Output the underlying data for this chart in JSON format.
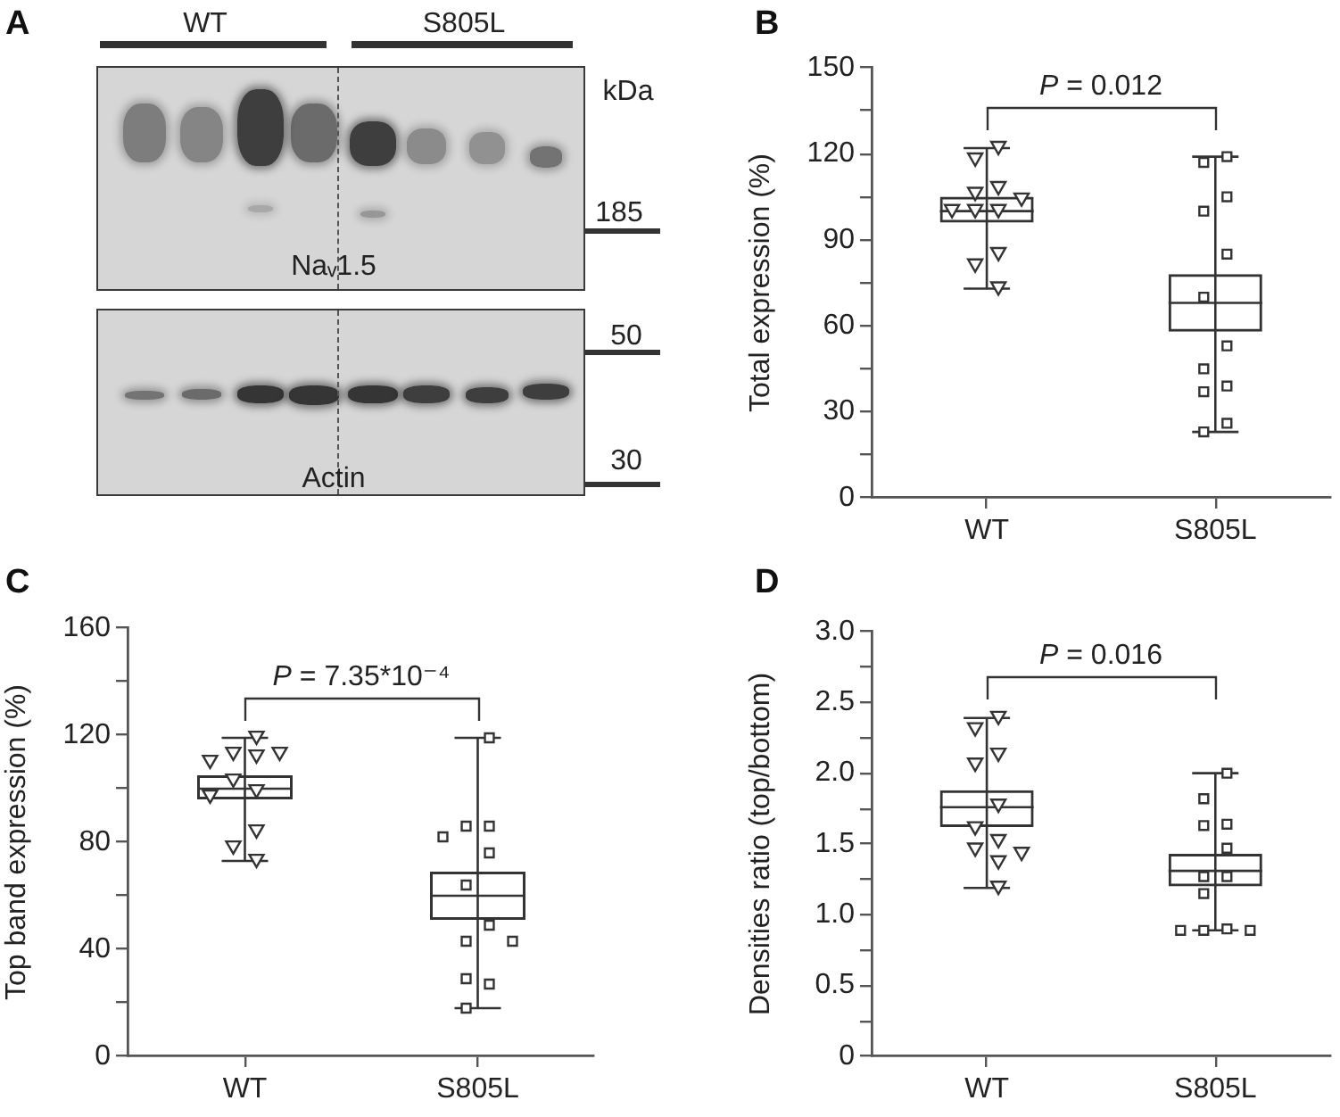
{
  "chart_data": [
    {
      "type": "other",
      "title": "A",
      "annotations": [
        "WT",
        "S805L",
        "kDa",
        "185",
        "50",
        "30",
        "Naᵥ1.5",
        "Actin"
      ]
    },
    {
      "type": "box",
      "title": "B",
      "ylabel": "Total expression (%)",
      "categories": [
        "WT",
        "S805L"
      ],
      "color": "#333333",
      "boxes": [
        {
          "low": 73,
          "q1": 96,
          "median": 100,
          "q3": 105,
          "high": 122
        },
        {
          "low": 23,
          "q1": 58,
          "median": 68,
          "q3": 78,
          "high": 119
        }
      ],
      "series": [
        {
          "type": "scatter",
          "color": "#333333",
          "marker": "triangle",
          "x": [
            "WT",
            "WT",
            "WT",
            "WT",
            "WT",
            "WT",
            "WT",
            "WT",
            "WT",
            "WT",
            "WT"
          ],
          "values": [
            122,
            118,
            108,
            106,
            104,
            100,
            100,
            100,
            85,
            81,
            73
          ]
        },
        {
          "type": "scatter",
          "color": "#333333",
          "marker": "square",
          "x": [
            "S805L",
            "S805L",
            "S805L",
            "S805L",
            "S805L",
            "S805L",
            "S805L",
            "S805L",
            "S805L",
            "S805L",
            "S805L",
            "S805L"
          ],
          "values": [
            119,
            117,
            105,
            100,
            85,
            70,
            53,
            45,
            39,
            37,
            26,
            23
          ]
        }
      ],
      "ylim": [
        0,
        150
      ],
      "yticks": [
        0,
        {
          "value": 15,
          "label": null
        },
        30,
        {
          "value": 45,
          "label": null
        },
        60,
        {
          "value": 75,
          "label": null
        },
        90,
        {
          "value": 105,
          "label": null
        },
        120,
        {
          "value": 135,
          "label": null
        },
        150
      ],
      "annotations": [
        "P = 0.012"
      ],
      "grid": false,
      "legend": false
    },
    {
      "type": "box",
      "title": "C",
      "ylabel": "Top band expression (%)",
      "categories": [
        "WT",
        "S805L"
      ],
      "color": "#333333",
      "boxes": [
        {
          "low": 73,
          "q1": 96,
          "median": 100,
          "q3": 105,
          "high": 119
        },
        {
          "low": 18,
          "q1": 51,
          "median": 60,
          "q3": 69,
          "high": 119
        }
      ],
      "series": [
        {
          "type": "scatter",
          "color": "#333333",
          "marker": "triangle",
          "x": [
            "WT",
            "WT",
            "WT",
            "WT",
            "WT",
            "WT",
            "WT",
            "WT",
            "WT",
            "WT",
            "WT"
          ],
          "values": [
            119,
            113,
            113,
            112,
            110,
            103,
            99,
            97,
            84,
            78,
            73
          ]
        },
        {
          "type": "scatter",
          "color": "#333333",
          "marker": "square",
          "x": [
            "S805L",
            "S805L",
            "S805L",
            "S805L",
            "S805L",
            "S805L",
            "S805L",
            "S805L",
            "S805L",
            "S805L",
            "S805L",
            "S805L"
          ],
          "values": [
            119,
            86,
            86,
            82,
            76,
            64,
            49,
            43,
            43,
            29,
            27,
            18
          ]
        }
      ],
      "ylim": [
        0,
        160
      ],
      "yticks": [
        0,
        {
          "value": 20,
          "label": null
        },
        40,
        {
          "value": 60,
          "label": null
        },
        80,
        {
          "value": 100,
          "label": null
        },
        120,
        {
          "value": 140,
          "label": null
        },
        160
      ],
      "annotations": [
        "P = 7.35*10⁻⁴"
      ],
      "grid": false,
      "legend": false
    },
    {
      "type": "box",
      "title": "D",
      "ylabel": "Densities ratio (top/bottom)",
      "categories": [
        "WT",
        "S805L"
      ],
      "color": "#333333",
      "boxes": [
        {
          "low": 1.19,
          "q1": 1.62,
          "median": 1.76,
          "q3": 1.88,
          "high": 2.39
        },
        {
          "low": 0.89,
          "q1": 1.2,
          "median": 1.31,
          "q3": 1.43,
          "high": 2.0
        }
      ],
      "series": [
        {
          "type": "scatter",
          "color": "#333333",
          "marker": "triangle",
          "x": [
            "WT",
            "WT",
            "WT",
            "WT",
            "WT",
            "WT",
            "WT",
            "WT",
            "WT",
            "WT",
            "WT"
          ],
          "values": [
            2.39,
            2.31,
            2.13,
            2.06,
            1.77,
            1.61,
            1.52,
            1.46,
            1.43,
            1.37,
            1.19
          ]
        },
        {
          "type": "scatter",
          "color": "#333333",
          "marker": "square",
          "x": [
            "S805L",
            "S805L",
            "S805L",
            "S805L",
            "S805L",
            "S805L",
            "S805L",
            "S805L",
            "S805L",
            "S805L",
            "S805L",
            "S805L"
          ],
          "values": [
            2.0,
            1.82,
            1.64,
            1.63,
            1.47,
            1.27,
            1.27,
            1.15,
            0.9,
            0.89,
            0.89,
            0.89
          ]
        }
      ],
      "ylim": [
        0,
        3
      ],
      "yticks": [
        0,
        {
          "value": 0.25,
          "label": null
        },
        0.5,
        {
          "value": 0.75,
          "label": null
        },
        {
          "value": 1,
          "label": "1.0"
        },
        {
          "value": 1.25,
          "label": null
        },
        1.5,
        {
          "value": 1.75,
          "label": null
        },
        {
          "value": 2,
          "label": "2.0"
        },
        {
          "value": 2.25,
          "label": null
        },
        2.5,
        {
          "value": 2.75,
          "label": null
        },
        {
          "value": 3,
          "label": "3.0"
        }
      ],
      "annotations": [
        "P = 0.016"
      ],
      "grid": false,
      "legend": false
    }
  ]
}
